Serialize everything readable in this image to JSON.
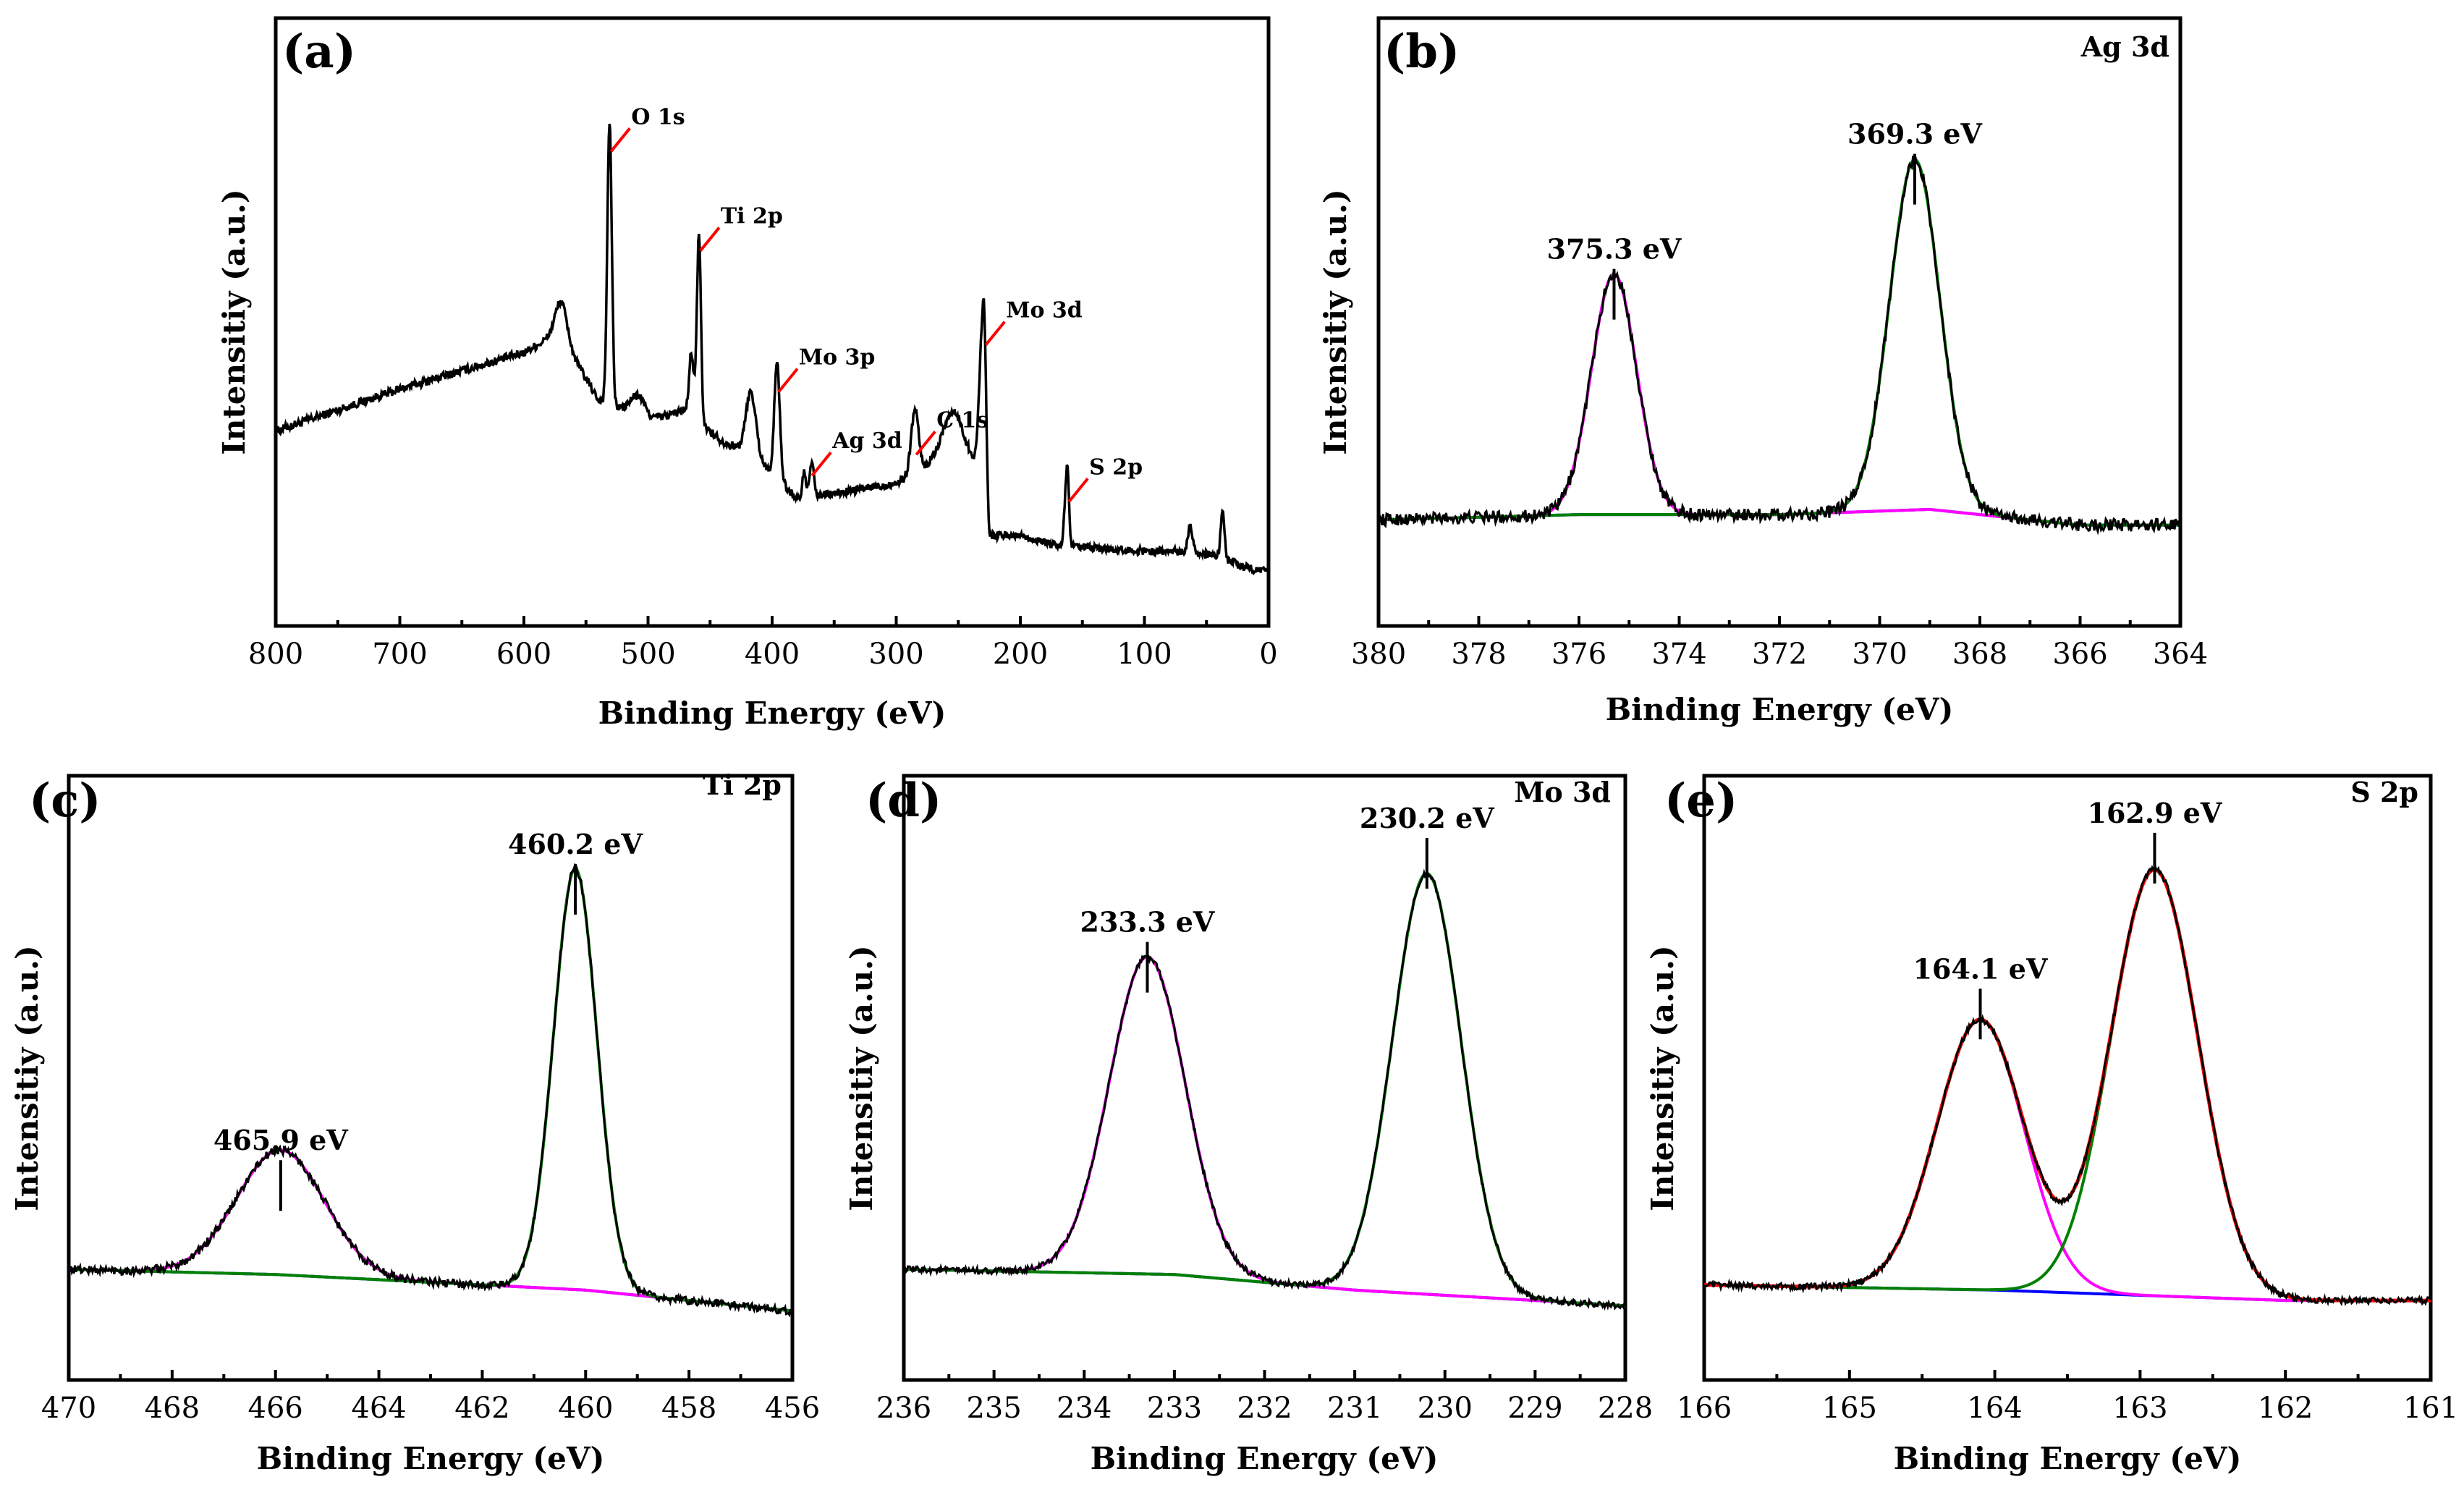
{
  "colors": {
    "data": "#000000",
    "magenta": "#ff00ff",
    "green": "#008000",
    "blue": "#0000ff",
    "red": "#ff0000"
  },
  "chart_data": [
    {
      "id": "a",
      "type": "line",
      "panel_label": "(a)",
      "corner_label": "",
      "xlabel": "Binding Energy (eV)",
      "ylabel": "Intensitiy (a.u.)",
      "xlim": [
        800,
        0
      ],
      "ylim": [
        0,
        100
      ],
      "xticks": [
        800,
        700,
        600,
        500,
        400,
        300,
        200,
        100,
        0
      ],
      "xtick_labels": [
        "800",
        "700",
        "600",
        "500",
        "400",
        "300",
        "200",
        "100",
        "0"
      ],
      "survey": {
        "background": [
          [
            800,
            28
          ],
          [
            700,
            36
          ],
          [
            600,
            43
          ],
          [
            570,
            47
          ],
          [
            560,
            42
          ],
          [
            540,
            34
          ],
          [
            500,
            30
          ],
          [
            470,
            32
          ],
          [
            440,
            26
          ],
          [
            420,
            24
          ],
          [
            400,
            20
          ],
          [
            380,
            15
          ],
          [
            350,
            16
          ],
          [
            300,
            18
          ],
          [
            270,
            22
          ],
          [
            250,
            24
          ],
          [
            235,
            22
          ],
          [
            225,
            8
          ],
          [
            200,
            8
          ],
          [
            170,
            6
          ],
          [
            100,
            5
          ],
          [
            70,
            5
          ],
          [
            40,
            4
          ],
          [
            20,
            2
          ],
          [
            0,
            1
          ]
        ],
        "peaks": [
          {
            "c": 570,
            "a": 6,
            "w": 5
          },
          {
            "c": 531,
            "a": 54,
            "w": 1.8
          },
          {
            "c": 508,
            "a": 4,
            "w": 6
          },
          {
            "c": 465,
            "a": 12,
            "w": 1.8
          },
          {
            "c": 459,
            "a": 36,
            "w": 1.6
          },
          {
            "c": 417,
            "a": 12,
            "w": 4
          },
          {
            "c": 396,
            "a": 22,
            "w": 2.2
          },
          {
            "c": 374,
            "a": 5,
            "w": 1.5
          },
          {
            "c": 368,
            "a": 7,
            "w": 1.5
          },
          {
            "c": 285,
            "a": 12,
            "w": 3
          },
          {
            "c": 255,
            "a": 8,
            "w": 8
          },
          {
            "c": 232,
            "a": 20,
            "w": 1.8
          },
          {
            "c": 229,
            "a": 33,
            "w": 1.6
          },
          {
            "c": 164,
            "a": 6,
            "w": 1.2
          },
          {
            "c": 162,
            "a": 14,
            "w": 1.2
          },
          {
            "c": 63,
            "a": 5,
            "w": 2
          },
          {
            "c": 37,
            "a": 9,
            "w": 1.5
          }
        ],
        "noise": 1.0
      },
      "annotations": [
        {
          "text": "O 1s",
          "x": 531,
          "y": 87
        },
        {
          "text": "Ti 2p",
          "x": 459,
          "y": 68
        },
        {
          "text": "Mo 3p",
          "x": 396,
          "y": 41
        },
        {
          "text": "Ag 3d",
          "x": 369,
          "y": 25
        },
        {
          "text": "C 1s",
          "x": 285,
          "y": 29
        },
        {
          "text": "Mo 3d",
          "x": 229,
          "y": 50
        },
        {
          "text": "S 2p",
          "x": 162,
          "y": 20
        }
      ]
    },
    {
      "id": "b",
      "type": "line",
      "panel_label": "(b)",
      "corner_label": "Ag 3d",
      "xlabel": "Binding Energy (eV)",
      "ylabel": "Intensitiy (a.u.)",
      "xlim": [
        380,
        364
      ],
      "ylim": [
        0,
        100
      ],
      "xticks": [
        380,
        378,
        376,
        374,
        372,
        370,
        368,
        366,
        364
      ],
      "xtick_labels": [
        "380",
        "378",
        "376",
        "374",
        "372",
        "370",
        "368",
        "366",
        "364"
      ],
      "baseline": [
        [
          380,
          11
        ],
        [
          376,
          12
        ],
        [
          372,
          12
        ],
        [
          369,
          13
        ],
        [
          366,
          10
        ],
        [
          364,
          10
        ]
      ],
      "components": [
        {
          "center": 375.3,
          "amp": 46,
          "width": 0.45,
          "color": "magenta"
        },
        {
          "center": 369.3,
          "amp": 67,
          "width": 0.5,
          "color": "green"
        }
      ],
      "markers": [
        {
          "text": "375.3 eV",
          "x": 375.3,
          "y": 59
        },
        {
          "text": "369.3 eV",
          "x": 369.3,
          "y": 81
        }
      ],
      "noise": 1.2
    },
    {
      "id": "c",
      "type": "line",
      "panel_label": "(c)",
      "corner_label": "Ti 2p",
      "xlabel": "Binding Energy (eV)",
      "ylabel": "Intensitiy (a.u.)",
      "xlim": [
        470,
        456
      ],
      "ylim": [
        0,
        100
      ],
      "xticks": [
        470,
        468,
        466,
        464,
        462,
        460,
        458,
        456
      ],
      "xtick_labels": [
        "470",
        "468",
        "466",
        "464",
        "462",
        "460",
        "458",
        "456"
      ],
      "baseline": [
        [
          470,
          12
        ],
        [
          466,
          11
        ],
        [
          462,
          9
        ],
        [
          460,
          8
        ],
        [
          458,
          6
        ],
        [
          456,
          4
        ]
      ],
      "components": [
        {
          "center": 465.9,
          "amp": 24,
          "width": 0.85,
          "color": "magenta"
        },
        {
          "center": 460.2,
          "amp": 81,
          "width": 0.42,
          "color": "green"
        }
      ],
      "markers": [
        {
          "text": "465.9 eV",
          "x": 465.9,
          "y": 33
        },
        {
          "text": "460.2 eV",
          "x": 460.2,
          "y": 90
        }
      ],
      "noise": 0.8
    },
    {
      "id": "d",
      "type": "line",
      "panel_label": "(d)",
      "corner_label": "Mo 3d",
      "xlabel": "Binding Energy (eV)",
      "ylabel": "Intensitiy (a.u.)",
      "xlim": [
        236,
        228
      ],
      "ylim": [
        0,
        100
      ],
      "xticks": [
        236,
        235,
        234,
        233,
        232,
        231,
        230,
        229,
        228
      ],
      "xtick_labels": [
        "236",
        "235",
        "234",
        "233",
        "232",
        "231",
        "230",
        "229",
        "228"
      ],
      "baseline": [
        [
          236,
          12
        ],
        [
          233,
          11
        ],
        [
          231,
          8
        ],
        [
          229,
          6
        ],
        [
          228,
          5
        ]
      ],
      "components": [
        {
          "center": 233.3,
          "amp": 61,
          "width": 0.42,
          "color": "magenta"
        },
        {
          "center": 230.2,
          "amp": 81,
          "width": 0.38,
          "color": "green"
        }
      ],
      "markers": [
        {
          "text": "233.3 eV",
          "x": 233.3,
          "y": 75
        },
        {
          "text": "230.2 eV",
          "x": 230.2,
          "y": 95
        }
      ],
      "noise": 0.6
    },
    {
      "id": "e",
      "type": "line",
      "panel_label": "(e)",
      "corner_label": "S 2p",
      "xlabel": "Binding Energy (eV)",
      "ylabel": "Intensitiy (a.u.)",
      "xlim": [
        166,
        161
      ],
      "ylim": [
        0,
        100
      ],
      "xticks": [
        166,
        165,
        164,
        163,
        162,
        161
      ],
      "xtick_labels": [
        "166",
        "165",
        "164",
        "163",
        "162",
        "161"
      ],
      "baseline": [
        [
          166,
          9
        ],
        [
          164,
          8
        ],
        [
          162,
          6
        ],
        [
          161,
          6
        ]
      ],
      "components": [
        {
          "center": 164.1,
          "amp": 52,
          "width": 0.3,
          "color": "magenta"
        },
        {
          "center": 162.9,
          "amp": 82,
          "width": 0.3,
          "color": "green"
        }
      ],
      "envelope_color": "red",
      "markers": [
        {
          "text": "164.1 eV",
          "x": 164.1,
          "y": 66
        },
        {
          "text": "162.9 eV",
          "x": 162.9,
          "y": 96
        }
      ],
      "noise": 0.6
    }
  ]
}
